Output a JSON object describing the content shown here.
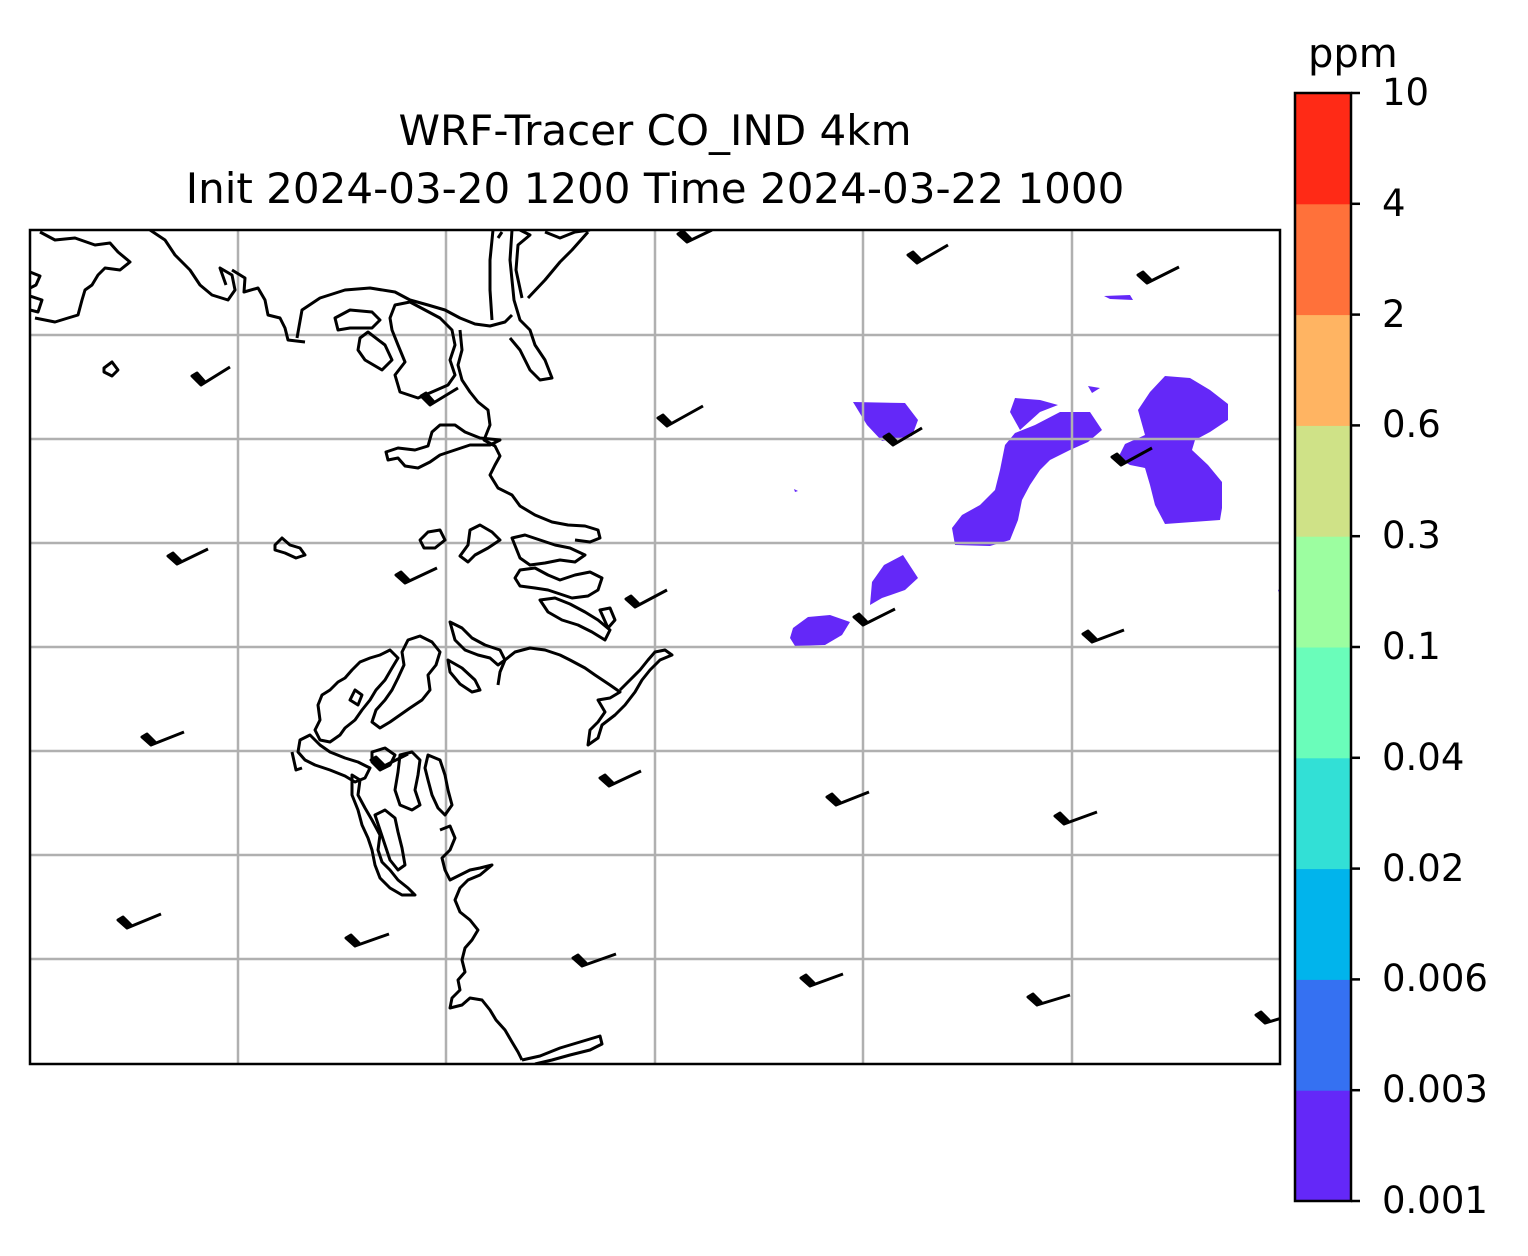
{
  "title": {
    "line1": "WRF-Tracer CO_IND 4km",
    "line2": "Init 2024-03-20 1200 Time 2024-03-22 1000"
  },
  "colorbar": {
    "unit": "ppm",
    "levels": [
      "0.001",
      "0.003",
      "0.006",
      "0.02",
      "0.04",
      "0.1",
      "0.3",
      "0.6",
      "2",
      "4",
      "10"
    ],
    "colors": [
      "#6428f8",
      "#3571f2",
      "#01b4ec",
      "#32e0d6",
      "#6afdba",
      "#9cfea0",
      "#cfe287",
      "#ffb462",
      "#ff713a",
      "#ff2a16"
    ]
  },
  "map": {
    "grid": "on",
    "plume_level_range": [
      "0.001",
      "0.003"
    ],
    "plume_color": "#6428f8",
    "coastline_color": "#000000",
    "wind_barbs_color": "#000000"
  }
}
